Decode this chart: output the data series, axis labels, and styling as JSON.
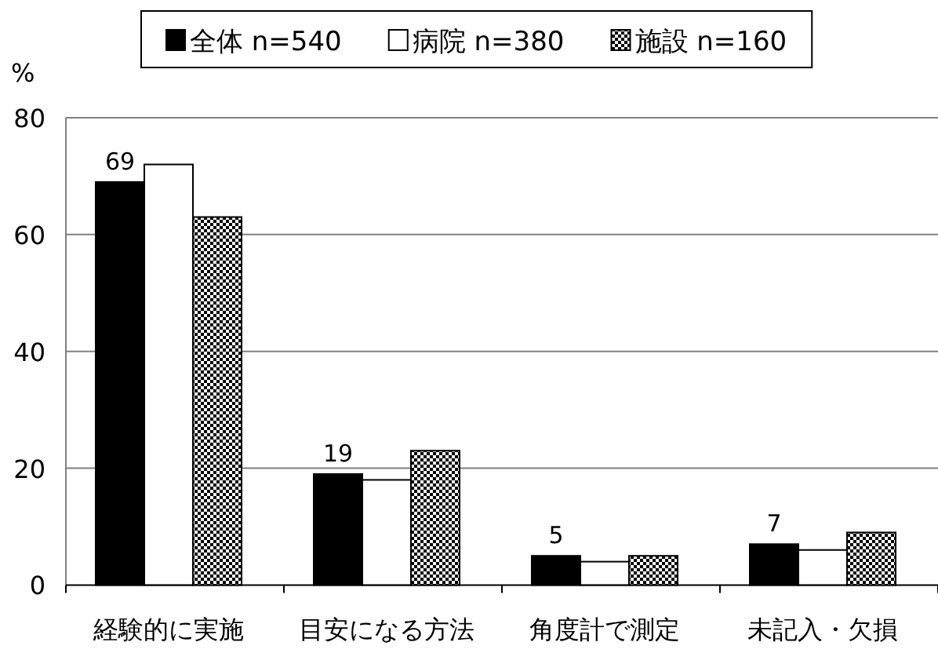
{
  "chart_data": {
    "type": "bar",
    "ylabel": "%",
    "categories": [
      "経験的に実施",
      "目安になる方法",
      "角度計で測定",
      "未記入・欠損"
    ],
    "series": [
      {
        "name": "全体 n=540",
        "color": "#000000",
        "values": [
          69,
          19,
          5,
          7
        ],
        "value_labels": [
          "69",
          "19",
          "5",
          "7"
        ]
      },
      {
        "name": "病院 n=380",
        "color": "#ffffff",
        "values": [
          72,
          18,
          4,
          6
        ]
      },
      {
        "name": "施設 n=160",
        "color": "#000000",
        "values": [
          63,
          23,
          5,
          9
        ]
      }
    ],
    "ylim": [
      0,
      80
    ],
    "yticks": [
      0,
      20,
      40,
      60,
      80
    ],
    "grid": "y",
    "legend": "top"
  }
}
